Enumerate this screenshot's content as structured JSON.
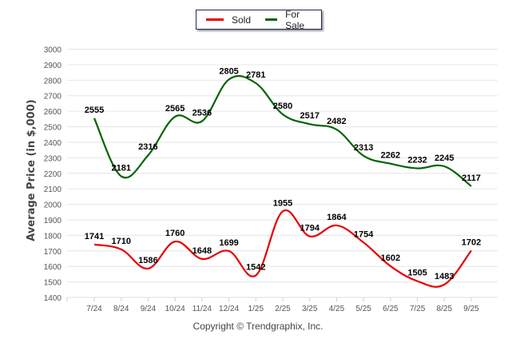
{
  "chart_data": {
    "type": "line",
    "title": "",
    "xlabel": "",
    "ylabel": "Average Price (in $,000)",
    "ylim": [
      1400,
      3000
    ],
    "yticks": [
      1400,
      1500,
      1600,
      1700,
      1800,
      1900,
      2000,
      2100,
      2200,
      2300,
      2400,
      2500,
      2600,
      2700,
      2800,
      2900,
      3000
    ],
    "grid": true,
    "legend_position": "top-center",
    "categories": [
      "7/24",
      "8/24",
      "9/24",
      "10/24",
      "11/24",
      "12/24",
      "1/25",
      "2/25",
      "3/25",
      "4/25",
      "5/25",
      "6/25",
      "7/25",
      "8/25",
      "9/25"
    ],
    "series": [
      {
        "name": "Sold",
        "color": "#e60000",
        "values": [
          1741,
          1710,
          1586,
          1760,
          1648,
          1699,
          1542,
          1955,
          1794,
          1864,
          1754,
          1602,
          1505,
          1483,
          1702
        ]
      },
      {
        "name": "For Sale",
        "color": "#006400",
        "values": [
          2555,
          2181,
          2316,
          2565,
          2536,
          2805,
          2781,
          2580,
          2517,
          2482,
          2313,
          2262,
          2232,
          2245,
          2117
        ]
      }
    ]
  },
  "legend": {
    "items": [
      {
        "label": "Sold",
        "color": "#e60000"
      },
      {
        "label": "For Sale",
        "color": "#006400"
      }
    ]
  },
  "footer": {
    "copyright": "Copyright © Trendgraphix, Inc."
  }
}
